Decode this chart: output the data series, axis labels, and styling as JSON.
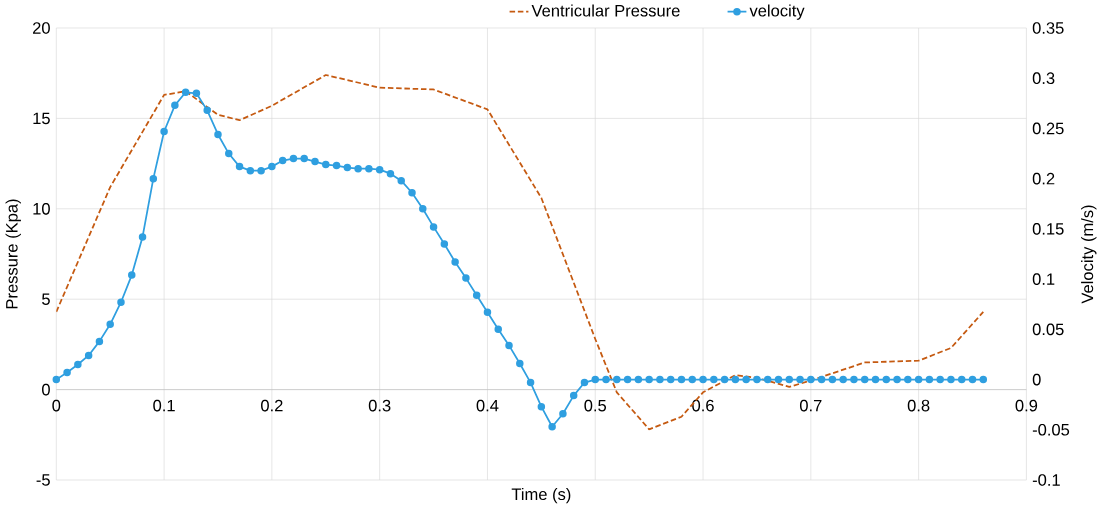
{
  "chart_data": {
    "type": "line",
    "xlabel": "Time (s)",
    "ylabel": "Pressure (Kpa)",
    "y2label": "Velocity (m/s)",
    "xlim": [
      0,
      0.9
    ],
    "xticks": [
      0,
      0.1,
      0.2,
      0.3,
      0.4,
      0.5,
      0.6,
      0.7,
      0.8,
      0.9
    ],
    "ylim": [
      -5,
      20
    ],
    "yticks": [
      -5,
      0,
      5,
      10,
      15,
      20
    ],
    "y2lim": [
      -0.1,
      0.35
    ],
    "y2ticks": [
      -0.1,
      -0.05,
      0,
      0.05,
      0.1,
      0.15,
      0.2,
      0.25,
      0.3,
      0.35
    ],
    "grid": true,
    "legend": "top",
    "series": [
      {
        "name": "Ventricular Pressure",
        "color": "#c55a11",
        "line_style": "dashed",
        "marker": "none",
        "x": [
          0,
          0.05,
          0.1,
          0.12,
          0.15,
          0.17,
          0.2,
          0.25,
          0.3,
          0.35,
          0.4,
          0.45,
          0.5,
          0.52,
          0.55,
          0.58,
          0.6,
          0.63,
          0.65,
          0.68,
          0.7,
          0.75,
          0.8,
          0.83,
          0.86
        ],
        "values": [
          4.3,
          11.2,
          16.3,
          16.5,
          15.2,
          14.9,
          15.7,
          17.4,
          16.7,
          16.6,
          15.5,
          10.6,
          2.8,
          -0.15,
          -2.2,
          -1.5,
          -0.15,
          0.8,
          0.65,
          0.15,
          0.5,
          1.5,
          1.6,
          2.3,
          4.3
        ]
      },
      {
        "name": "velocity",
        "color": "#2f9fe0",
        "line_style": "solid",
        "marker": "circle",
        "axis": "y2",
        "x": [
          0,
          0.01,
          0.02,
          0.03,
          0.04,
          0.05,
          0.06,
          0.07,
          0.08,
          0.09,
          0.1,
          0.11,
          0.12,
          0.13,
          0.14,
          0.15,
          0.16,
          0.17,
          0.18,
          0.19,
          0.2,
          0.21,
          0.22,
          0.23,
          0.24,
          0.25,
          0.26,
          0.27,
          0.28,
          0.29,
          0.3,
          0.31,
          0.32,
          0.33,
          0.34,
          0.35,
          0.36,
          0.37,
          0.38,
          0.39,
          0.4,
          0.41,
          0.42,
          0.43,
          0.44,
          0.45,
          0.46,
          0.47,
          0.48,
          0.49,
          0.5,
          0.51,
          0.52,
          0.53,
          0.54,
          0.55,
          0.56,
          0.57,
          0.58,
          0.59,
          0.6,
          0.61,
          0.62,
          0.63,
          0.64,
          0.65,
          0.66,
          0.67,
          0.68,
          0.69,
          0.7,
          0.71,
          0.72,
          0.73,
          0.74,
          0.75,
          0.76,
          0.77,
          0.78,
          0.79,
          0.8,
          0.81,
          0.82,
          0.83,
          0.84,
          0.85,
          0.86
        ],
        "values": [
          0,
          0.007,
          0.015,
          0.024,
          0.038,
          0.055,
          0.077,
          0.104,
          0.142,
          0.2,
          0.247,
          0.273,
          0.286,
          0.285,
          0.268,
          0.244,
          0.225,
          0.212,
          0.208,
          0.208,
          0.212,
          0.218,
          0.22,
          0.22,
          0.217,
          0.214,
          0.213,
          0.211,
          0.21,
          0.21,
          0.209,
          0.205,
          0.198,
          0.186,
          0.17,
          0.152,
          0.135,
          0.117,
          0.101,
          0.084,
          0.067,
          0.05,
          0.034,
          0.016,
          -0.003,
          -0.027,
          -0.047,
          -0.034,
          -0.016,
          -0.003,
          0,
          0,
          0,
          0,
          0,
          0,
          0,
          0,
          0,
          0,
          0,
          0,
          0,
          0,
          0,
          0,
          0,
          0,
          0,
          0,
          0,
          0,
          0,
          0,
          0,
          0,
          0,
          0,
          0,
          0,
          0,
          0,
          0,
          0,
          0,
          0,
          0
        ]
      }
    ]
  }
}
